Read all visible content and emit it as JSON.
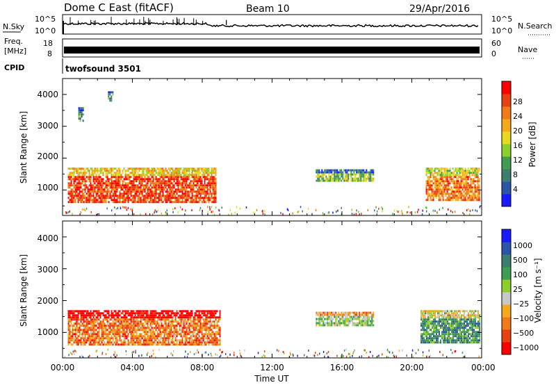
{
  "header": {
    "station": "Dome C East (fitACF)",
    "beam": "Beam 10",
    "date": "29/Apr/2016"
  },
  "param_panels": {
    "nsky_label": "N.Sky",
    "nsearch_label": "N.Search",
    "nsky_top": "10^5",
    "nsky_bottom": "10^0",
    "freq_label_1": "Freq.",
    "freq_label_2": "[MHz]",
    "freq_ticks": [
      "18",
      "8"
    ],
    "nave_label": "Nave",
    "nave_ticks": [
      "60",
      "0"
    ],
    "cpid_label": "CPID",
    "cpid_value": "twofsound 3501"
  },
  "colors": {
    "power": [
      "#1a1aff",
      "#2a55a8",
      "#3d7f6e",
      "#3f9c52",
      "#8ccf2c",
      "#e8d820",
      "#f5a81a",
      "#f07a18",
      "#e84010",
      "#ff0000"
    ],
    "velocity": [
      "#ff0000",
      "#e84010",
      "#f07a18",
      "#f5a81a",
      "#c8c8c8",
      "#8ccf2c",
      "#3f9c52",
      "#3d7f6e",
      "#2a55a8",
      "#1a1aff"
    ]
  },
  "chart_data": [
    {
      "type": "heatmap",
      "name": "power",
      "ylabel": "Slant Range [km]",
      "yticks": [
        "4000",
        "3000",
        "2000",
        "1000"
      ],
      "ylim": [
        200,
        4500
      ],
      "xlim": [
        0,
        24
      ],
      "colorbar_label": "Power [dB]",
      "colorbar_ticks": [
        "28",
        "24",
        "20",
        "16",
        "12",
        "8",
        "4"
      ],
      "regions": [
        {
          "t0": 0.3,
          "t1": 8.8,
          "r0": 600,
          "r1": 1700,
          "level": 0.85
        },
        {
          "t0": 14.5,
          "t1": 17.8,
          "r0": 1300,
          "r1": 1650,
          "level": 0.45
        },
        {
          "t0": 20.8,
          "t1": 23.9,
          "r0": 700,
          "r1": 1700,
          "level": 0.75
        },
        {
          "t0": 0.9,
          "t1": 1.2,
          "r0": 3200,
          "r1": 3600,
          "level": 0.35
        },
        {
          "t0": 2.6,
          "t1": 2.9,
          "r0": 3800,
          "r1": 4100,
          "level": 0.3
        }
      ]
    },
    {
      "type": "heatmap",
      "name": "velocity",
      "ylabel": "Slant Range [km]",
      "yticks": [
        "4000",
        "3000",
        "2000",
        "1000"
      ],
      "ylim": [
        200,
        4500
      ],
      "xlim": [
        0,
        24
      ],
      "colorbar_label": "Velocity [m s⁻¹]",
      "colorbar_ticks": [
        "1000",
        "500",
        "100",
        "25",
        "−25",
        "−100",
        "−500",
        "−1000"
      ],
      "xlabel": "Time UT",
      "xticks": [
        "00:00",
        "04:00",
        "08:00",
        "12:00",
        "16:00",
        "20:00",
        "00:00"
      ],
      "regions": [
        {
          "t0": 0.3,
          "t1": 9.0,
          "r0": 650,
          "r1": 1700,
          "level": 0.25
        },
        {
          "t0": 14.5,
          "t1": 17.8,
          "r0": 1250,
          "r1": 1650,
          "level": 0.55
        },
        {
          "t0": 20.5,
          "t1": 23.9,
          "r0": 700,
          "r1": 1700,
          "level": 0.7
        }
      ]
    }
  ]
}
